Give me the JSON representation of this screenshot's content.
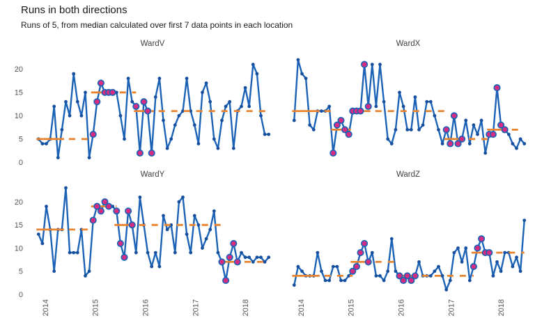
{
  "header": {
    "title": "Runs in both directions",
    "subtitle": "Runs of 5, from median calculated over first 7 data points in each location"
  },
  "chart_data": {
    "type": "line",
    "title": "Runs in both directions",
    "subtitle": "Runs of 5, from median calculated over first 7 data points in each location",
    "legend": "none",
    "grid": "off",
    "layout": "2x2 facets, shared axes, y labels left column only, x labels bottom only",
    "x_axis": {
      "tick_labels": [
        "2014",
        "2015",
        "2016",
        "2017",
        "2018"
      ],
      "rotation": -90
    },
    "y_axis": {
      "tick_labels": [
        0,
        5,
        10,
        15,
        20
      ],
      "range": [
        0,
        23
      ]
    },
    "colors": {
      "line": "#1c63b7",
      "point": "#164f9e",
      "signal_fill": "#d62c82",
      "signal_ring": "#1c63b7",
      "median": "#e8832f",
      "title_text": "#1a1a1a",
      "axis_text": "#555555",
      "strip_text": "#404040",
      "background": "#ffffff"
    },
    "facets": [
      {
        "label": "WardV",
        "values": [
          5,
          4,
          4,
          5,
          12,
          1,
          7,
          13,
          10,
          19,
          13,
          10,
          15,
          1,
          6,
          13,
          17,
          15,
          15,
          15,
          15,
          10,
          5,
          18,
          13,
          12,
          2,
          13,
          11,
          2,
          14,
          18,
          9,
          3,
          5,
          8,
          10,
          11,
          18,
          11,
          8,
          4,
          15,
          17,
          13,
          5,
          3,
          9,
          12,
          13,
          3,
          11,
          12,
          16,
          12,
          21,
          19,
          10,
          6,
          6
        ],
        "signal_idx": [
          14,
          15,
          16,
          17,
          18,
          19,
          25,
          26,
          27,
          28,
          29
        ],
        "medians": [
          {
            "value": 5,
            "solid": [
              0,
              6
            ],
            "dash_to": 14
          },
          {
            "value": 15,
            "solid": [
              14,
              19
            ],
            "dash_to": 25
          },
          {
            "value": 11,
            "solid": [
              25,
              29
            ],
            "dash_to": 59
          }
        ]
      },
      {
        "label": "WardX",
        "values": [
          9,
          22,
          19,
          18,
          8,
          7,
          11,
          11,
          11,
          12,
          2,
          8,
          9,
          7,
          6,
          11,
          11,
          11,
          21,
          12,
          21,
          12,
          21,
          13,
          5,
          4,
          7,
          15,
          12,
          7,
          7,
          14,
          7,
          8,
          13,
          13,
          10,
          7,
          4,
          7,
          4,
          10,
          4,
          5,
          9,
          4,
          8,
          6,
          9,
          2,
          6,
          6,
          16,
          8,
          7,
          6,
          4,
          3,
          5,
          4
        ],
        "signal_idx": [
          10,
          11,
          12,
          13,
          14,
          15,
          16,
          17,
          18,
          19,
          39,
          40,
          41,
          42,
          43,
          50,
          51,
          52,
          53,
          54
        ],
        "medians": [
          {
            "value": 11,
            "solid": [
              0,
              6
            ],
            "dash_to": 10
          },
          {
            "value": 7,
            "solid": [
              10,
              14
            ],
            "dash_to": 15
          },
          {
            "value": 11,
            "solid": [
              15,
              19
            ],
            "dash_to": 39
          },
          {
            "value": 5,
            "solid": [
              39,
              43
            ],
            "dash_to": 50
          },
          {
            "value": 7,
            "solid": [
              50,
              54
            ],
            "dash_to": 59
          }
        ]
      },
      {
        "label": "WardY",
        "values": [
          13,
          11,
          19,
          14,
          5,
          14,
          14,
          23,
          9,
          9,
          9,
          14,
          4,
          5,
          16,
          19,
          18,
          20,
          19,
          19,
          18,
          11,
          8,
          18,
          15,
          9,
          21,
          15,
          9,
          6,
          9,
          6,
          17,
          14,
          15,
          9,
          20,
          21,
          13,
          9,
          17,
          15,
          10,
          12,
          14,
          18,
          9,
          7,
          3,
          8,
          11,
          7,
          9,
          8,
          8,
          7,
          8,
          8,
          7,
          8
        ],
        "signal_idx": [
          14,
          15,
          16,
          17,
          18,
          20,
          21,
          22,
          23,
          24,
          47,
          48,
          49,
          50,
          51
        ],
        "medians": [
          {
            "value": 14,
            "solid": [
              0,
              6
            ],
            "dash_to": 14
          },
          {
            "value": 19,
            "solid": [
              14,
              18
            ],
            "dash_to": 20
          },
          {
            "value": 15,
            "solid": [
              20,
              24
            ],
            "dash_to": 47
          },
          {
            "value": 7,
            "solid": [
              47,
              51
            ],
            "dash_to": 59
          }
        ]
      },
      {
        "label": "WardZ",
        "values": [
          2,
          6,
          5,
          4,
          4,
          4,
          9,
          5,
          3,
          3,
          6,
          6,
          3,
          3,
          4,
          5,
          6,
          9,
          11,
          7,
          9,
          4,
          4,
          3,
          5,
          12,
          5,
          4,
          3,
          4,
          3,
          4,
          7,
          4,
          4,
          4,
          5,
          6,
          4,
          1,
          3,
          9,
          10,
          7,
          10,
          3,
          6,
          10,
          12,
          9,
          9,
          4,
          7,
          5,
          9,
          9,
          6,
          8,
          5,
          16
        ],
        "signal_idx": [
          15,
          16,
          17,
          18,
          19,
          27,
          28,
          29,
          30,
          31,
          46,
          47,
          48,
          49,
          50
        ],
        "medians": [
          {
            "value": 4,
            "solid": [
              0,
              6
            ],
            "dash_to": 15
          },
          {
            "value": 7,
            "solid": [
              15,
              19
            ],
            "dash_to": 27
          },
          {
            "value": 4,
            "solid": [
              27,
              31
            ],
            "dash_to": 46
          },
          {
            "value": 9,
            "solid": [
              46,
              50
            ],
            "dash_to": 59
          }
        ]
      }
    ]
  }
}
